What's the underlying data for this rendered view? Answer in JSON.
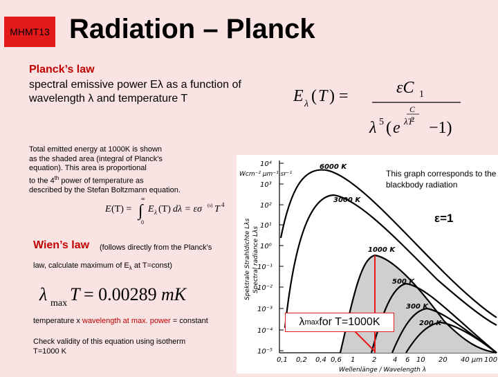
{
  "header": {
    "tag": "MHMT13",
    "title": "Radiation – Planck"
  },
  "planck": {
    "heading": "Planck’s law",
    "description_line1": "spectral emissive power Eλ as a function of",
    "description_line2": "wavelength λ and temperature T"
  },
  "total_energy": {
    "line1": "Total emitted energy at 1000K is shown",
    "line2": "as the shaded area (integral of Planck's",
    "line3": "equation). This area is proportional",
    "line4_prefix": "to the 4",
    "line4_sup": "th",
    "line4_suffix": " power of temperature as",
    "line5": "described by the Stefan Boltzmann equation."
  },
  "wien": {
    "heading": "Wien’s law",
    "note": "(follows directly from the Planck's",
    "note2_prefix": "law, calculate maximum of E",
    "note2_sub": "λ",
    "note2_suffix": " at T=const)",
    "temp_line_1": "temperature x ",
    "temp_line_2": "wavelength at max. power",
    "temp_line_3": " = constant",
    "check_line1": "Check validity of this equation using isotherm",
    "check_line2": "T=1000 K"
  },
  "graph": {
    "note": "This graph corresponds to the blackbody radiation",
    "epsilon": "ε=1",
    "lambda_max_label_1": "λ",
    "lambda_max_label_sub": "max",
    "lambda_max_label_2": " for T=1000K",
    "y_ticks": [
      "10⁴",
      "10³",
      "10²",
      "10¹",
      "10⁰",
      "10⁻¹",
      "10⁻²",
      "10⁻³",
      "10⁻⁴",
      "10⁻⁵"
    ],
    "x_ticks": [
      "0,1",
      "0,2",
      "0,4",
      "0,6",
      "1",
      "2",
      "4",
      "6",
      "10",
      "20",
      "40 μm",
      "100"
    ],
    "y_units": "Wcm⁻² μm⁻¹ sr⁻¹",
    "y_axis_de": "Spektrale Strahldichte Lλs",
    "y_axis_en": "Spectral radiance Lλs",
    "x_axis": "Wellenlänge / Wavelength λ",
    "curve_labels": [
      "6000 K",
      "3000 K",
      "1000 K",
      "500 K",
      "300 K",
      "200 K"
    ]
  },
  "colors": {
    "background": "#f9e3e3",
    "accent_red": "#e21a1a",
    "heading_red": "#c00000"
  }
}
